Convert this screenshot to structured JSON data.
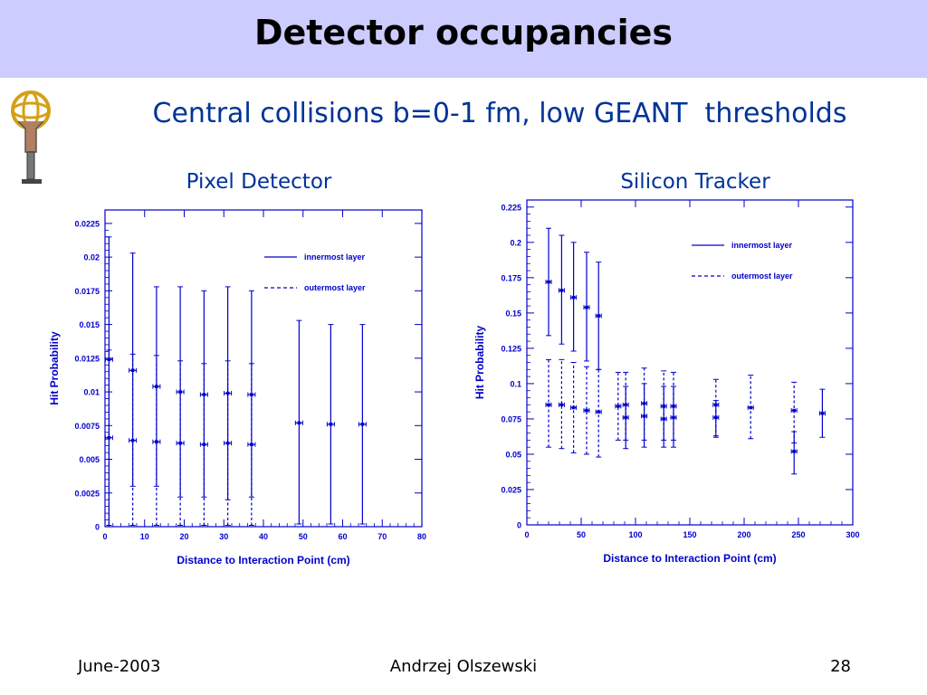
{
  "slide": {
    "title": "Detector occupancies",
    "subtitle": "Central collisions b=0-1 fm, low GEANT  thresholds",
    "footer_left": "June-2003",
    "footer_center": "Andrzej Olszewski",
    "footer_right": "28"
  },
  "colors": {
    "title_band": "#ccccff",
    "subtitle": "#003399",
    "plot": "#0000cc"
  },
  "chart_data": [
    {
      "type": "scatter",
      "title": "Pixel Detector",
      "xlabel": "Distance to Interaction Point (cm)",
      "ylabel": "Hit Probability",
      "xlim": [
        0,
        80
      ],
      "ylim": [
        0,
        0.0235
      ],
      "xticks": [
        0,
        10,
        20,
        30,
        40,
        50,
        60,
        70,
        80
      ],
      "yticks": [
        0,
        0.0025,
        0.005,
        0.0075,
        0.01,
        0.0125,
        0.015,
        0.0175,
        0.02,
        0.0225
      ],
      "legend_position": "top-right",
      "series": [
        {
          "name": "innermost layer",
          "style": "solid",
          "x": [
            1,
            7,
            13,
            19,
            25,
            31,
            37,
            49,
            57,
            65
          ],
          "y": [
            0.0124,
            0.0116,
            0.0104,
            0.01,
            0.0098,
            0.0099,
            0.0098,
            0.0077,
            0.0076,
            0.0076
          ],
          "err_low": [
            0.0,
            0.003,
            0.003,
            0.0022,
            0.0022,
            0.002,
            0.0022,
            0.0002,
            0.0002,
            0.0002
          ],
          "err_high": [
            0.0215,
            0.0203,
            0.0178,
            0.0178,
            0.0175,
            0.0178,
            0.0175,
            0.0153,
            0.015,
            0.015
          ]
        },
        {
          "name": "outermost layer",
          "style": "dashed",
          "x": [
            1,
            7,
            13,
            19,
            25,
            31,
            37
          ],
          "y": [
            0.0066,
            0.0064,
            0.0063,
            0.0062,
            0.0061,
            0.0062,
            0.0061
          ],
          "err_low": [
            0.0001,
            0.0001,
            0.0001,
            0.0001,
            0.0001,
            0.0001,
            0.0001
          ],
          "err_high": [
            0.0131,
            0.0128,
            0.0127,
            0.0123,
            0.0121,
            0.0123,
            0.0121
          ]
        }
      ]
    },
    {
      "type": "scatter",
      "title": "Silicon Tracker",
      "xlabel": "Distance to Interaction Point (cm)",
      "ylabel": "Hit Probability",
      "xlim": [
        0,
        300
      ],
      "ylim": [
        0,
        0.23
      ],
      "xticks": [
        0,
        50,
        100,
        150,
        200,
        250,
        300
      ],
      "yticks": [
        0,
        0.025,
        0.05,
        0.075,
        0.1,
        0.125,
        0.15,
        0.175,
        0.2,
        0.225
      ],
      "legend_position": "top-right",
      "series": [
        {
          "name": "innermost layer",
          "style": "solid",
          "x": [
            20,
            32,
            43,
            55,
            66,
            91,
            108,
            126,
            135,
            174,
            246,
            272
          ],
          "y": [
            0.172,
            0.166,
            0.161,
            0.154,
            0.148,
            0.076,
            0.077,
            0.075,
            0.076,
            0.076,
            0.052,
            0.079
          ],
          "err_low": [
            0.134,
            0.128,
            0.123,
            0.116,
            0.11,
            0.054,
            0.055,
            0.055,
            0.055,
            0.063,
            0.036,
            0.062
          ],
          "err_high": [
            0.21,
            0.205,
            0.2,
            0.193,
            0.186,
            0.098,
            0.1,
            0.098,
            0.098,
            0.088,
            0.066,
            0.096
          ]
        },
        {
          "name": "outermost layer",
          "style": "dashed",
          "x": [
            20,
            32,
            43,
            55,
            66,
            84,
            91,
            108,
            126,
            135,
            174,
            206,
            246
          ],
          "y": [
            0.085,
            0.085,
            0.083,
            0.081,
            0.08,
            0.084,
            0.085,
            0.086,
            0.084,
            0.084,
            0.085,
            0.083,
            0.081
          ],
          "err_low": [
            0.055,
            0.054,
            0.051,
            0.05,
            0.048,
            0.06,
            0.06,
            0.06,
            0.06,
            0.06,
            0.062,
            0.061,
            0.058
          ],
          "err_high": [
            0.117,
            0.117,
            0.115,
            0.112,
            0.11,
            0.108,
            0.108,
            0.111,
            0.109,
            0.108,
            0.103,
            0.106,
            0.101
          ]
        }
      ]
    }
  ]
}
